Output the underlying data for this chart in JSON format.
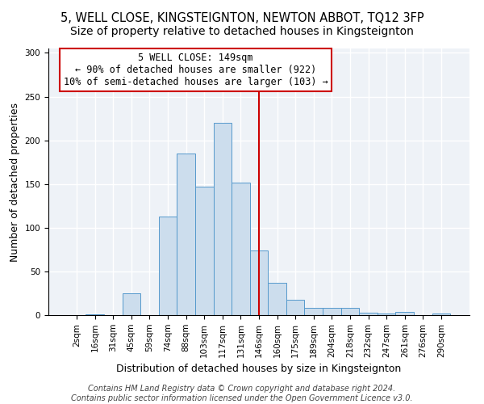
{
  "title": "5, WELL CLOSE, KINGSTEIGNTON, NEWTON ABBOT, TQ12 3FP",
  "subtitle": "Size of property relative to detached houses in Kingsteignton",
  "xlabel": "Distribution of detached houses by size in Kingsteignton",
  "ylabel": "Number of detached properties",
  "bar_labels": [
    "2sqm",
    "16sqm",
    "31sqm",
    "45sqm",
    "59sqm",
    "74sqm",
    "88sqm",
    "103sqm",
    "117sqm",
    "131sqm",
    "146sqm",
    "160sqm",
    "175sqm",
    "189sqm",
    "204sqm",
    "218sqm",
    "232sqm",
    "247sqm",
    "261sqm",
    "276sqm",
    "290sqm"
  ],
  "bar_values": [
    0,
    1,
    0,
    25,
    0,
    113,
    185,
    147,
    220,
    152,
    74,
    37,
    18,
    8,
    8,
    8,
    3,
    2,
    4,
    0,
    2
  ],
  "bar_color": "#ccdded",
  "bar_edgecolor": "#5599cc",
  "vline_x": 10.0,
  "vline_color": "#cc0000",
  "annotation_box_text": "5 WELL CLOSE: 149sqm\n← 90% of detached houses are smaller (922)\n10% of semi-detached houses are larger (103) →",
  "annotation_box_facecolor": "#ffffff",
  "annotation_box_edgecolor": "#cc0000",
  "ylim": [
    0,
    305
  ],
  "yticks": [
    0,
    50,
    100,
    150,
    200,
    250,
    300
  ],
  "footer1": "Contains HM Land Registry data © Crown copyright and database right 2024.",
  "footer2": "Contains public sector information licensed under the Open Government Licence v3.0.",
  "title_fontsize": 10.5,
  "axis_label_fontsize": 9,
  "tick_fontsize": 7.5,
  "footer_fontsize": 7,
  "annot_fontsize": 8.5,
  "background_color": "#eef2f7"
}
